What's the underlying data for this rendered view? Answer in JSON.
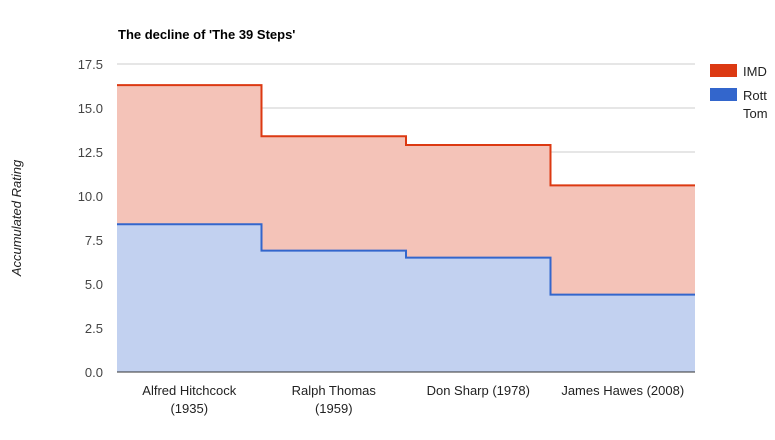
{
  "chart_data": {
    "type": "area",
    "stacked": true,
    "stepped": true,
    "title": "The decline of 'The 39 Steps'",
    "xlabel": "",
    "ylabel": "Accumulated Rating",
    "ylim": [
      0,
      17.5
    ],
    "yticks": [
      "0.0",
      "2.5",
      "5.0",
      "7.5",
      "10.0",
      "12.5",
      "15.0",
      "17.5"
    ],
    "ytick_values": [
      0,
      2.5,
      5,
      7.5,
      10,
      12.5,
      15,
      17.5
    ],
    "categories": [
      [
        "Alfred Hitchcock",
        "(1935)"
      ],
      [
        "Ralph Thomas",
        "(1959)"
      ],
      [
        "Don Sharp (1978)"
      ],
      [
        "James Hawes (2008)"
      ]
    ],
    "series": [
      {
        "name_lines": [
          "Rott",
          "Tom"
        ],
        "color": "#3366cc",
        "fill": "#c2d1f0",
        "values": [
          8.4,
          6.9,
          6.5,
          4.4
        ]
      },
      {
        "name_lines": [
          "IMD"
        ],
        "color": "#dc3912",
        "fill": "#f4c3b8",
        "values": [
          7.9,
          6.5,
          6.4,
          6.2
        ]
      }
    ],
    "grid": true,
    "legend_position": "right"
  }
}
